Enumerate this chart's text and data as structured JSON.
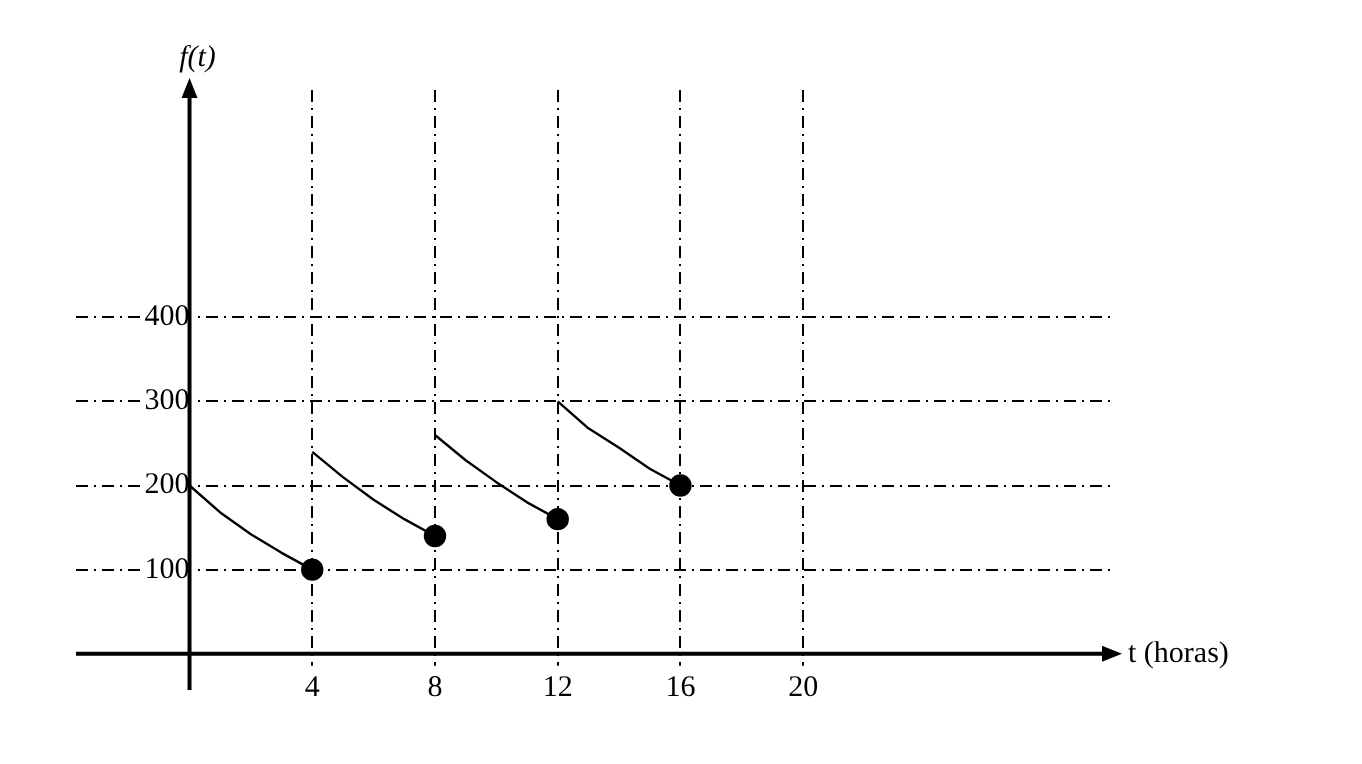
{
  "chart_data": {
    "type": "line",
    "xlabel": "t (horas)",
    "ylabel": "f(t)",
    "series": [
      {
        "color": "#000000",
        "x": [
          0,
          1,
          2,
          3,
          4
        ],
        "values": [
          200,
          168,
          142,
          120,
          100
        ]
      },
      {
        "color": "#000000",
        "x": [
          4,
          5,
          6,
          7,
          8
        ],
        "values": [
          240,
          210,
          183,
          160,
          140
        ]
      },
      {
        "color": "#000000",
        "x": [
          8,
          9,
          10,
          11,
          12
        ],
        "values": [
          260,
          230,
          204,
          180,
          160
        ]
      },
      {
        "color": "#000000",
        "x": [
          12,
          13,
          14,
          15,
          16
        ],
        "values": [
          300,
          268,
          245,
          220,
          200
        ]
      },
      {
        "type": "scatter",
        "color": "#000000",
        "marker": "circle",
        "x": [
          4,
          8,
          12,
          16
        ],
        "values": [
          100,
          140,
          160,
          200
        ]
      }
    ],
    "marker": "none",
    "line_style": "solid",
    "xlim": [
      -3.7,
      30
    ],
    "xticks": [
      4,
      8,
      12,
      16,
      20
    ],
    "ylim": [
      -43,
      670
    ],
    "yticks": [
      100,
      200,
      300,
      400
    ],
    "grid": true,
    "legend": false
  }
}
